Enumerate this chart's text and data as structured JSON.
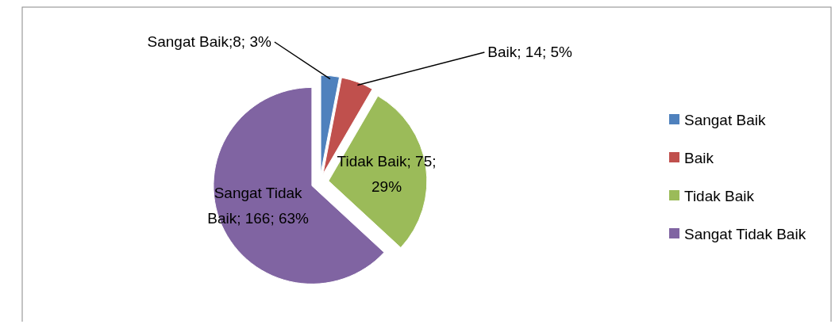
{
  "chart_data": {
    "type": "pie",
    "categories": [
      "Sangat Baik",
      "Baik",
      "Tidak Baik",
      "Sangat Tidak Baik"
    ],
    "values": [
      8,
      14,
      75,
      166
    ],
    "colors": [
      "#4f81bd",
      "#c0504d",
      "#9bbb59",
      "#8064a2"
    ],
    "value_labels": [
      "Sangat Baik;8; 3%",
      "Baik; 14; 5%",
      "Tidak Baik; 75; 29%",
      "Sangat Tidak Baik; 166; 63%"
    ],
    "legend": "right"
  }
}
